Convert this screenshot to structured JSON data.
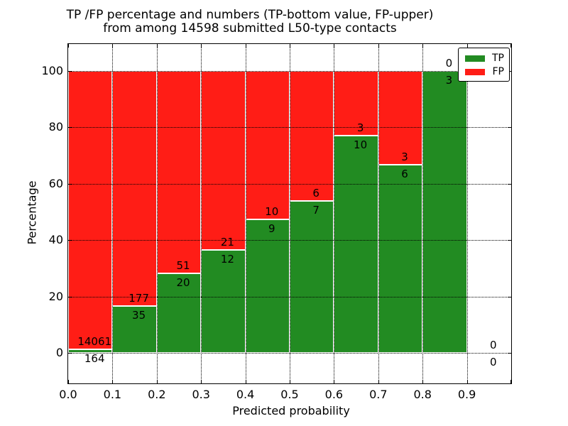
{
  "title": {
    "line1": "TP /FP percentage and numbers (TP-bottom value, FP-upper)",
    "line2": "from among 14598 submitted L50-type contacts"
  },
  "chart_data": {
    "type": "bar",
    "stacked": true,
    "normalized": "each bar scaled to 100%, TP bottom (green), FP upper (red)",
    "title": "TP /FP percentage and numbers (TP-bottom value, FP-upper) from among 14598 submitted L50-type contacts",
    "xlabel": "Predicted probability",
    "ylabel": "Percentage",
    "xlim": [
      0.0,
      1.0
    ],
    "ylim": [
      -11,
      110
    ],
    "grid": "dotted, both axes",
    "x_tick_labels": [
      "0.0",
      "0.1",
      "0.2",
      "0.3",
      "0.4",
      "0.5",
      "0.6",
      "0.7",
      "0.8",
      "0.9"
    ],
    "y_ticks": [
      0,
      20,
      40,
      60,
      80,
      100
    ],
    "categories": [
      "0.0-0.1",
      "0.1-0.2",
      "0.2-0.3",
      "0.3-0.4",
      "0.4-0.5",
      "0.5-0.6",
      "0.6-0.7",
      "0.7-0.8",
      "0.8-0.9",
      "0.9-1.0"
    ],
    "series": [
      {
        "name": "TP",
        "color": "#228b22",
        "values": [
          164,
          35,
          20,
          12,
          9,
          7,
          10,
          6,
          3,
          0
        ]
      },
      {
        "name": "FP",
        "color": "#ff1d16",
        "values": [
          14061,
          177,
          51,
          21,
          10,
          6,
          3,
          3,
          0,
          0
        ]
      }
    ],
    "bins": [
      {
        "range": "0.0-0.1",
        "tp": 164,
        "fp": 14061
      },
      {
        "range": "0.1-0.2",
        "tp": 35,
        "fp": 177
      },
      {
        "range": "0.2-0.3",
        "tp": 20,
        "fp": 51
      },
      {
        "range": "0.3-0.4",
        "tp": 12,
        "fp": 21
      },
      {
        "range": "0.4-0.5",
        "tp": 9,
        "fp": 10
      },
      {
        "range": "0.5-0.6",
        "tp": 7,
        "fp": 6
      },
      {
        "range": "0.6-0.7",
        "tp": 10,
        "fp": 3
      },
      {
        "range": "0.7-0.8",
        "tp": 6,
        "fp": 3
      },
      {
        "range": "0.8-0.9",
        "tp": 3,
        "fp": 0
      },
      {
        "range": "0.9-1.0",
        "tp": 0,
        "fp": 0
      }
    ],
    "legend": {
      "position": "upper right",
      "entries": [
        {
          "label": "TP",
          "color": "#228b22"
        },
        {
          "label": "FP",
          "color": "#ff1d16"
        }
      ]
    }
  }
}
